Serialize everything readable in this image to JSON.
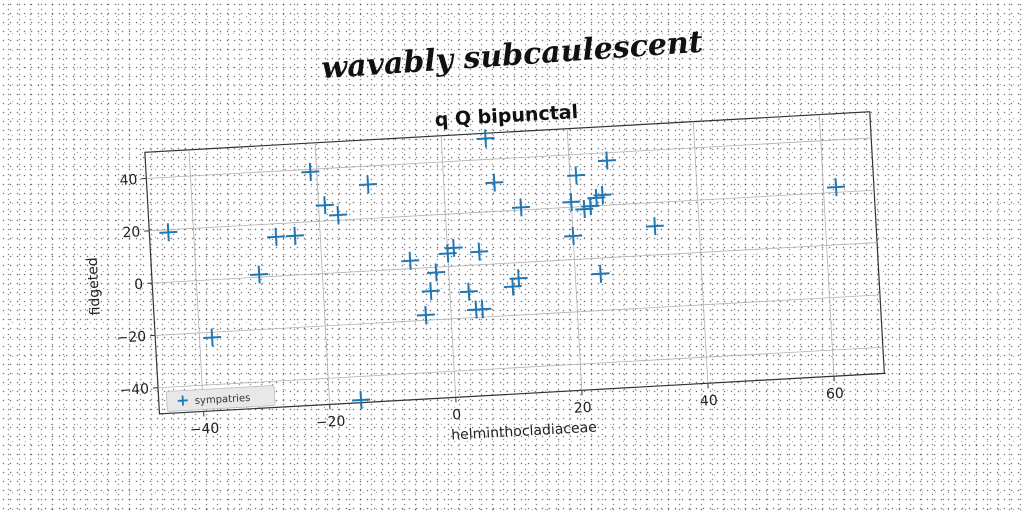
{
  "page": {
    "supertitle": "wavably subcaulescent"
  },
  "chart_data": {
    "type": "scatter",
    "title": "q Q bipunctal",
    "xlabel": "helminthocladiaceae",
    "ylabel": "fidgeted",
    "xlim": [
      -47,
      68
    ],
    "ylim": [
      -50,
      50
    ],
    "xticks": [
      -40,
      -20,
      0,
      20,
      40,
      60
    ],
    "yticks": [
      -40,
      -20,
      0,
      20,
      40
    ],
    "grid": true,
    "legend_position": "lower-left",
    "marker": "plus",
    "colors": {
      "series": "#1f77b4",
      "grid": "#b0b0b0"
    },
    "series": [
      {
        "name": "sympatries",
        "points": [
          [
            -44,
            19
          ],
          [
            -38,
            -22
          ],
          [
            -30,
            1
          ],
          [
            -27,
            15
          ],
          [
            -24,
            15
          ],
          [
            -21,
            39
          ],
          [
            -19,
            26
          ],
          [
            -17,
            22
          ],
          [
            -12,
            33
          ],
          [
            -15,
            -49
          ],
          [
            -6,
            3
          ],
          [
            -4,
            -18
          ],
          [
            -3,
            -9
          ],
          [
            -2,
            -2
          ],
          [
            0,
            5
          ],
          [
            1,
            7
          ],
          [
            3,
            -10
          ],
          [
            4,
            -17
          ],
          [
            5,
            -17
          ],
          [
            5,
            5
          ],
          [
            7,
            48
          ],
          [
            8,
            31
          ],
          [
            10,
            -9
          ],
          [
            11,
            -6
          ],
          [
            12,
            21
          ],
          [
            20,
            9
          ],
          [
            20,
            22
          ],
          [
            21,
            32
          ],
          [
            22,
            19
          ],
          [
            23,
            20
          ],
          [
            24,
            23
          ],
          [
            25,
            24
          ],
          [
            26,
            37
          ],
          [
            24,
            -6
          ],
          [
            33,
            11
          ],
          [
            62,
            22
          ]
        ]
      }
    ]
  }
}
